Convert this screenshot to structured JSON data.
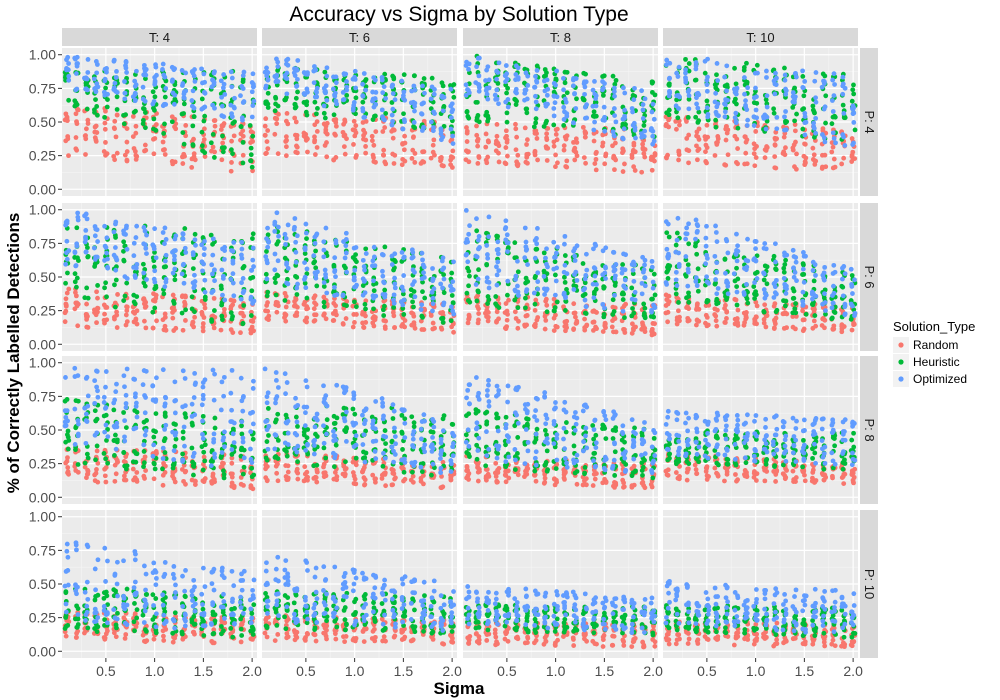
{
  "chart_data": {
    "type": "scatter",
    "title": "Accuracy vs Sigma by Solution Type",
    "xlabel": "Sigma",
    "ylabel": "% of Correctly Labelled Detections",
    "xlim": [
      0.05,
      2.05
    ],
    "ylim": [
      -0.05,
      1.05
    ],
    "x_ticks": [
      0.5,
      1.0,
      1.5,
      2.0
    ],
    "x_tick_labels": [
      "0.5",
      "1.0",
      "1.5",
      "2.0"
    ],
    "y_ticks": [
      0.0,
      0.25,
      0.5,
      0.75,
      1.0
    ],
    "y_tick_labels": [
      "0.00",
      "0.25",
      "0.50",
      "0.75",
      "1.00"
    ],
    "grid": true,
    "facet_cols": [
      "T: 4",
      "T: 6",
      "T: 8",
      "T: 10"
    ],
    "facet_rows": [
      "P: 4",
      "P: 6",
      "P: 8",
      "P: 10"
    ],
    "legend": {
      "title": "Solution_Type",
      "position": "right",
      "entries": [
        {
          "name": "Random",
          "color": "#F8766D"
        },
        {
          "name": "Heuristic",
          "color": "#00BA38"
        },
        {
          "name": "Optimized",
          "color": "#619CFF"
        }
      ]
    },
    "sigma_values": [
      0.1,
      0.2,
      0.3,
      0.4,
      0.5,
      0.6,
      0.7,
      0.8,
      0.9,
      1.0,
      1.1,
      1.2,
      1.3,
      1.4,
      1.5,
      1.6,
      1.7,
      1.8,
      1.9,
      2.0
    ],
    "facets": [
      {
        "row": "P: 4",
        "col": "T: 4",
        "series": [
          {
            "name": "Random",
            "range_at_min_sigma": [
              0.25,
              0.63
            ],
            "range_at_max_sigma": [
              0.12,
              0.5
            ]
          },
          {
            "name": "Heuristic",
            "range_at_min_sigma": [
              0.63,
              0.88
            ],
            "range_at_max_sigma": [
              0.12,
              0.88
            ]
          },
          {
            "name": "Optimized",
            "range_at_min_sigma": [
              0.75,
              1.0
            ],
            "range_at_max_sigma": [
              0.5,
              0.88
            ]
          }
        ]
      },
      {
        "row": "P: 4",
        "col": "T: 6",
        "series": [
          {
            "name": "Random",
            "range_at_min_sigma": [
              0.25,
              0.58
            ],
            "range_at_max_sigma": [
              0.15,
              0.5
            ]
          },
          {
            "name": "Heuristic",
            "range_at_min_sigma": [
              0.58,
              0.92
            ],
            "range_at_max_sigma": [
              0.42,
              0.83
            ]
          },
          {
            "name": "Optimized",
            "range_at_min_sigma": [
              0.75,
              1.0
            ],
            "range_at_max_sigma": [
              0.33,
              0.75
            ]
          }
        ]
      },
      {
        "row": "P: 4",
        "col": "T: 8",
        "series": [
          {
            "name": "Random",
            "range_at_min_sigma": [
              0.19,
              0.5
            ],
            "range_at_max_sigma": [
              0.12,
              0.44
            ]
          },
          {
            "name": "Heuristic",
            "range_at_min_sigma": [
              0.5,
              1.0
            ],
            "range_at_max_sigma": [
              0.37,
              0.81
            ]
          },
          {
            "name": "Optimized",
            "range_at_min_sigma": [
              0.69,
              1.0
            ],
            "range_at_max_sigma": [
              0.31,
              0.75
            ]
          }
        ]
      },
      {
        "row": "P: 4",
        "col": "T: 10",
        "series": [
          {
            "name": "Random",
            "range_at_min_sigma": [
              0.2,
              0.55
            ],
            "range_at_max_sigma": [
              0.12,
              0.45
            ]
          },
          {
            "name": "Heuristic",
            "range_at_min_sigma": [
              0.5,
              1.0
            ],
            "range_at_max_sigma": [
              0.35,
              0.85
            ]
          },
          {
            "name": "Optimized",
            "range_at_min_sigma": [
              0.6,
              1.0
            ],
            "range_at_max_sigma": [
              0.3,
              0.85
            ]
          }
        ]
      },
      {
        "row": "P: 6",
        "col": "T: 4",
        "series": [
          {
            "name": "Random",
            "range_at_min_sigma": [
              0.12,
              0.42
            ],
            "range_at_max_sigma": [
              0.08,
              0.33
            ]
          },
          {
            "name": "Heuristic",
            "range_at_min_sigma": [
              0.33,
              0.92
            ],
            "range_at_max_sigma": [
              0.12,
              0.83
            ]
          },
          {
            "name": "Optimized",
            "range_at_min_sigma": [
              0.58,
              1.0
            ],
            "range_at_max_sigma": [
              0.25,
              0.75
            ]
          }
        ]
      },
      {
        "row": "P: 6",
        "col": "T: 6",
        "series": [
          {
            "name": "Random",
            "range_at_min_sigma": [
              0.17,
              0.39
            ],
            "range_at_max_sigma": [
              0.08,
              0.31
            ]
          },
          {
            "name": "Heuristic",
            "range_at_min_sigma": [
              0.33,
              0.89
            ],
            "range_at_max_sigma": [
              0.14,
              0.64
            ]
          },
          {
            "name": "Optimized",
            "range_at_min_sigma": [
              0.44,
              1.0
            ],
            "range_at_max_sigma": [
              0.22,
              0.64
            ]
          }
        ]
      },
      {
        "row": "P: 6",
        "col": "T: 8",
        "series": [
          {
            "name": "Random",
            "range_at_min_sigma": [
              0.13,
              0.38
            ],
            "range_at_max_sigma": [
              0.06,
              0.29
            ]
          },
          {
            "name": "Heuristic",
            "range_at_min_sigma": [
              0.29,
              0.88
            ],
            "range_at_max_sigma": [
              0.17,
              0.56
            ]
          },
          {
            "name": "Optimized",
            "range_at_min_sigma": [
              0.4,
              1.0
            ],
            "range_at_max_sigma": [
              0.21,
              0.63
            ]
          }
        ]
      },
      {
        "row": "P: 6",
        "col": "T: 10",
        "series": [
          {
            "name": "Random",
            "range_at_min_sigma": [
              0.15,
              0.37
            ],
            "range_at_max_sigma": [
              0.08,
              0.28
            ]
          },
          {
            "name": "Heuristic",
            "range_at_min_sigma": [
              0.3,
              0.85
            ],
            "range_at_max_sigma": [
              0.17,
              0.52
            ]
          },
          {
            "name": "Optimized",
            "range_at_min_sigma": [
              0.42,
              1.0
            ],
            "range_at_max_sigma": [
              0.2,
              0.57
            ]
          }
        ]
      },
      {
        "row": "P: 8",
        "col": "T: 4",
        "series": [
          {
            "name": "Random",
            "range_at_min_sigma": [
              0.12,
              0.38
            ],
            "range_at_max_sigma": [
              0.06,
              0.31
            ]
          },
          {
            "name": "Heuristic",
            "range_at_min_sigma": [
              0.25,
              0.75
            ],
            "range_at_max_sigma": [
              0.12,
              0.56
            ]
          },
          {
            "name": "Optimized",
            "range_at_min_sigma": [
              0.38,
              1.0
            ],
            "range_at_max_sigma": [
              0.19,
              0.94
            ]
          }
        ]
      },
      {
        "row": "P: 8",
        "col": "T: 6",
        "series": [
          {
            "name": "Random",
            "range_at_min_sigma": [
              0.12,
              0.33
            ],
            "range_at_max_sigma": [
              0.06,
              0.27
            ]
          },
          {
            "name": "Heuristic",
            "range_at_min_sigma": [
              0.25,
              0.71
            ],
            "range_at_max_sigma": [
              0.15,
              0.65
            ]
          },
          {
            "name": "Optimized",
            "range_at_min_sigma": [
              0.33,
              1.0
            ],
            "range_at_max_sigma": [
              0.17,
              0.58
            ]
          }
        ]
      },
      {
        "row": "P: 8",
        "col": "T: 8",
        "series": [
          {
            "name": "Random",
            "range_at_min_sigma": [
              0.12,
              0.31
            ],
            "range_at_max_sigma": [
              0.06,
              0.25
            ]
          },
          {
            "name": "Heuristic",
            "range_at_min_sigma": [
              0.22,
              0.66
            ],
            "range_at_max_sigma": [
              0.14,
              0.5
            ]
          },
          {
            "name": "Optimized",
            "range_at_min_sigma": [
              0.28,
              0.94
            ],
            "range_at_max_sigma": [
              0.16,
              0.56
            ]
          }
        ]
      },
      {
        "row": "P: 8",
        "col": "T: 10",
        "series": [
          {
            "name": "Random",
            "range_at_min_sigma": [
              0.13,
              0.33
            ],
            "range_at_max_sigma": [
              0.1,
              0.25
            ]
          },
          {
            "name": "Heuristic",
            "range_at_min_sigma": [
              0.25,
              0.5
            ],
            "range_at_max_sigma": [
              0.2,
              0.48
            ]
          },
          {
            "name": "Optimized",
            "range_at_min_sigma": [
              0.3,
              0.65
            ],
            "range_at_max_sigma": [
              0.23,
              0.58
            ]
          }
        ]
      },
      {
        "row": "P: 10",
        "col": "T: 4",
        "series": [
          {
            "name": "Random",
            "range_at_min_sigma": [
              0.08,
              0.3
            ],
            "range_at_max_sigma": [
              0.05,
              0.25
            ]
          },
          {
            "name": "Heuristic",
            "range_at_min_sigma": [
              0.15,
              0.5
            ],
            "range_at_max_sigma": [
              0.1,
              0.4
            ]
          },
          {
            "name": "Optimized",
            "range_at_min_sigma": [
              0.2,
              0.85
            ],
            "range_at_max_sigma": [
              0.15,
              0.58
            ]
          }
        ]
      },
      {
        "row": "P: 10",
        "col": "T: 6",
        "series": [
          {
            "name": "Random",
            "range_at_min_sigma": [
              0.08,
              0.27
            ],
            "range_at_max_sigma": [
              0.05,
              0.23
            ]
          },
          {
            "name": "Heuristic",
            "range_at_min_sigma": [
              0.17,
              0.45
            ],
            "range_at_max_sigma": [
              0.13,
              0.42
            ]
          },
          {
            "name": "Optimized",
            "range_at_min_sigma": [
              0.22,
              0.72
            ],
            "range_at_max_sigma": [
              0.15,
              0.5
            ]
          }
        ]
      },
      {
        "row": "P: 10",
        "col": "T: 8",
        "series": [
          {
            "name": "Random",
            "range_at_min_sigma": [
              0.05,
              0.22
            ],
            "range_at_max_sigma": [
              0.03,
              0.2
            ]
          },
          {
            "name": "Heuristic",
            "range_at_min_sigma": [
              0.15,
              0.35
            ],
            "range_at_max_sigma": [
              0.12,
              0.33
            ]
          },
          {
            "name": "Optimized",
            "range_at_min_sigma": [
              0.2,
              0.5
            ],
            "range_at_max_sigma": [
              0.13,
              0.4
            ]
          }
        ]
      },
      {
        "row": "P: 10",
        "col": "T: 10",
        "series": [
          {
            "name": "Random",
            "range_at_min_sigma": [
              0.05,
              0.23
            ],
            "range_at_max_sigma": [
              0.03,
              0.2
            ]
          },
          {
            "name": "Heuristic",
            "range_at_min_sigma": [
              0.15,
              0.35
            ],
            "range_at_max_sigma": [
              0.1,
              0.32
            ]
          },
          {
            "name": "Optimized",
            "range_at_min_sigma": [
              0.2,
              0.52
            ],
            "range_at_max_sigma": [
              0.12,
              0.45
            ]
          }
        ]
      }
    ]
  }
}
